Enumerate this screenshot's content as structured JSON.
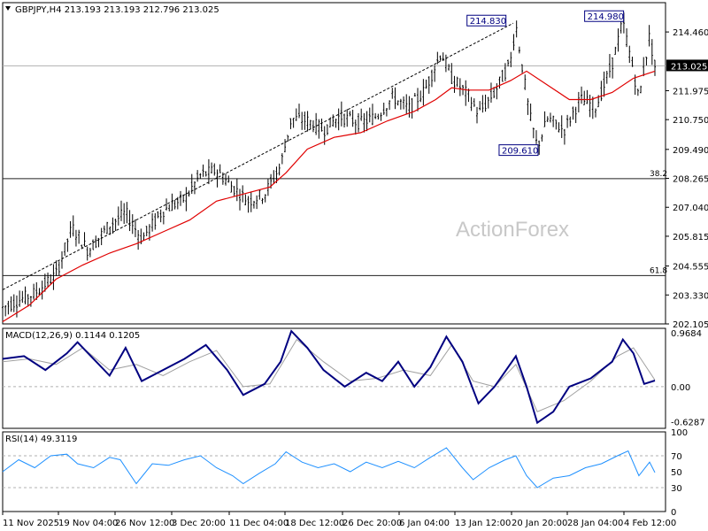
{
  "header": {
    "instrument": "GBPJPY,H4",
    "ohlc": "213.193 213.193 212.796 213.025"
  },
  "watermark": "ActionForex",
  "colors": {
    "candle": "#000000",
    "ma": "#e00000",
    "macd": "#000080",
    "signal": "#a0a0a0",
    "rsi": "#1e90ff",
    "trendline": "#000000",
    "current_price_bg": "#000000"
  },
  "chart_data": [
    {
      "type": "candlestick",
      "title": "GBPJPY,H4",
      "ylim": [
        202.105,
        215.7
      ],
      "y_ticks": [
        "214.460",
        "211.975",
        "210.750",
        "209.490",
        "208.265",
        "207.040",
        "205.815",
        "204.555",
        "203.330",
        "202.105"
      ],
      "x_ticks": [
        "11 Nov 2025",
        "19 Nov 04:00",
        "26 Nov 12:00",
        "3 Dec 20:00",
        "11 Dec 04:00",
        "18 Dec 12:00",
        "26 Dec 20:00",
        "6 Jan 04:00",
        "13 Jan 12:00",
        "20 Jan 20:00",
        "28 Jan 04:00",
        "4 Feb 12:00"
      ],
      "current_price": "213.025",
      "close_trace": [
        [
          0,
          202.8
        ],
        [
          0.06,
          203.4
        ],
        [
          0.1,
          204.2
        ],
        [
          0.13,
          206.2
        ],
        [
          0.16,
          205.2
        ],
        [
          0.2,
          206.3
        ],
        [
          0.23,
          206.8
        ],
        [
          0.26,
          205.7
        ],
        [
          0.3,
          206.9
        ],
        [
          0.34,
          207.4
        ],
        [
          0.37,
          208.4
        ],
        [
          0.4,
          208.6
        ],
        [
          0.43,
          207.9
        ],
        [
          0.46,
          207.3
        ],
        [
          0.49,
          207.6
        ],
        [
          0.52,
          208.8
        ],
        [
          0.54,
          210.8
        ],
        [
          0.57,
          210.7
        ],
        [
          0.6,
          210.3
        ],
        [
          0.63,
          210.9
        ],
        [
          0.67,
          210.6
        ],
        [
          0.7,
          210.9
        ],
        [
          0.73,
          211.7
        ],
        [
          0.76,
          211.2
        ],
        [
          0.79,
          212.0
        ],
        [
          0.82,
          213.6
        ],
        [
          0.84,
          212.5
        ],
        [
          0.87,
          211.8
        ],
        [
          0.89,
          211.0
        ],
        [
          0.92,
          211.9
        ],
        [
          0.95,
          213.2
        ],
        [
          0.96,
          214.8
        ],
        [
          0.985,
          211.0
        ],
        [
          1.0,
          209.6
        ],
        [
          1.02,
          210.8
        ],
        [
          1.05,
          210.3
        ],
        [
          1.08,
          211.6
        ],
        [
          1.11,
          211.3
        ],
        [
          1.14,
          213.1
        ],
        [
          1.16,
          214.9
        ],
        [
          1.18,
          212.8
        ],
        [
          1.19,
          211.6
        ],
        [
          1.21,
          214.3
        ],
        [
          1.22,
          213.0
        ]
      ],
      "ma_trace": [
        [
          0,
          202.2
        ],
        [
          0.05,
          202.9
        ],
        [
          0.1,
          204.0
        ],
        [
          0.15,
          204.6
        ],
        [
          0.2,
          205.1
        ],
        [
          0.25,
          205.5
        ],
        [
          0.3,
          206.0
        ],
        [
          0.35,
          206.5
        ],
        [
          0.4,
          207.3
        ],
        [
          0.45,
          207.6
        ],
        [
          0.5,
          207.9
        ],
        [
          0.53,
          208.5
        ],
        [
          0.57,
          209.5
        ],
        [
          0.62,
          210.0
        ],
        [
          0.67,
          210.2
        ],
        [
          0.72,
          210.7
        ],
        [
          0.77,
          211.1
        ],
        [
          0.81,
          211.6
        ],
        [
          0.84,
          212.1
        ],
        [
          0.87,
          212.0
        ],
        [
          0.91,
          212.0
        ],
        [
          0.95,
          212.4
        ],
        [
          0.98,
          212.8
        ],
        [
          1.02,
          212.2
        ],
        [
          1.06,
          211.6
        ],
        [
          1.1,
          211.6
        ],
        [
          1.14,
          211.9
        ],
        [
          1.18,
          212.5
        ],
        [
          1.22,
          212.8
        ]
      ],
      "annotations": [
        {
          "text": "214.830",
          "value": 214.83
        },
        {
          "text": "214.980",
          "value": 214.98
        },
        {
          "text": "209.610",
          "value": 209.61
        }
      ],
      "fib_levels": [
        {
          "label": "38.2",
          "value": 208.25
        },
        {
          "label": "61.8",
          "value": 204.15
        }
      ],
      "horizontal_line": 213.025,
      "grid": false
    },
    {
      "type": "line",
      "title": "MACD(12,26,9) 0.1144 0.1205",
      "ylim": [
        -0.75,
        1.05
      ],
      "y_ticks": [
        "0.9684",
        "0.00",
        "-0.6287"
      ],
      "series": [
        {
          "name": "MACD",
          "points": [
            [
              0,
              0.5
            ],
            [
              0.04,
              0.55
            ],
            [
              0.08,
              0.3
            ],
            [
              0.12,
              0.6
            ],
            [
              0.14,
              0.8
            ],
            [
              0.16,
              0.6
            ],
            [
              0.2,
              0.2
            ],
            [
              0.23,
              0.7
            ],
            [
              0.26,
              0.1
            ],
            [
              0.3,
              0.3
            ],
            [
              0.34,
              0.5
            ],
            [
              0.38,
              0.75
            ],
            [
              0.42,
              0.3
            ],
            [
              0.45,
              -0.15
            ],
            [
              0.49,
              0.05
            ],
            [
              0.52,
              0.45
            ],
            [
              0.54,
              1.0
            ],
            [
              0.57,
              0.7
            ],
            [
              0.6,
              0.3
            ],
            [
              0.64,
              0.0
            ],
            [
              0.68,
              0.25
            ],
            [
              0.71,
              0.1
            ],
            [
              0.74,
              0.45
            ],
            [
              0.77,
              0.0
            ],
            [
              0.8,
              0.35
            ],
            [
              0.83,
              0.9
            ],
            [
              0.86,
              0.45
            ],
            [
              0.89,
              -0.3
            ],
            [
              0.92,
              0.0
            ],
            [
              0.96,
              0.55
            ],
            [
              0.98,
              0.0
            ],
            [
              1.0,
              -0.65
            ],
            [
              1.03,
              -0.45
            ],
            [
              1.06,
              0.0
            ],
            [
              1.1,
              0.15
            ],
            [
              1.14,
              0.45
            ],
            [
              1.16,
              0.85
            ],
            [
              1.18,
              0.6
            ],
            [
              1.2,
              0.05
            ],
            [
              1.22,
              0.11
            ]
          ]
        },
        {
          "name": "Signal",
          "points": [
            [
              0,
              0.45
            ],
            [
              0.05,
              0.5
            ],
            [
              0.1,
              0.4
            ],
            [
              0.15,
              0.7
            ],
            [
              0.2,
              0.3
            ],
            [
              0.25,
              0.4
            ],
            [
              0.3,
              0.2
            ],
            [
              0.35,
              0.45
            ],
            [
              0.4,
              0.65
            ],
            [
              0.45,
              0.0
            ],
            [
              0.5,
              0.05
            ],
            [
              0.55,
              0.85
            ],
            [
              0.6,
              0.45
            ],
            [
              0.65,
              0.1
            ],
            [
              0.7,
              0.15
            ],
            [
              0.75,
              0.3
            ],
            [
              0.8,
              0.2
            ],
            [
              0.84,
              0.75
            ],
            [
              0.88,
              0.1
            ],
            [
              0.92,
              0.0
            ],
            [
              0.96,
              0.4
            ],
            [
              1.0,
              -0.45
            ],
            [
              1.05,
              -0.25
            ],
            [
              1.1,
              0.1
            ],
            [
              1.15,
              0.55
            ],
            [
              1.18,
              0.7
            ],
            [
              1.22,
              0.12
            ]
          ]
        }
      ]
    },
    {
      "type": "line",
      "title": "RSI(14) 49.3119",
      "ylim": [
        0,
        100
      ],
      "y_ticks": [
        "100",
        "70",
        "50",
        "30",
        "0"
      ],
      "levels": [
        70,
        30
      ],
      "series": [
        {
          "name": "RSI",
          "points": [
            [
              0,
              50
            ],
            [
              0.03,
              65
            ],
            [
              0.06,
              55
            ],
            [
              0.09,
              70
            ],
            [
              0.12,
              72
            ],
            [
              0.14,
              60
            ],
            [
              0.17,
              55
            ],
            [
              0.2,
              68
            ],
            [
              0.22,
              65
            ],
            [
              0.25,
              35
            ],
            [
              0.28,
              60
            ],
            [
              0.31,
              58
            ],
            [
              0.34,
              65
            ],
            [
              0.37,
              70
            ],
            [
              0.4,
              55
            ],
            [
              0.43,
              45
            ],
            [
              0.45,
              35
            ],
            [
              0.48,
              48
            ],
            [
              0.51,
              60
            ],
            [
              0.53,
              75
            ],
            [
              0.56,
              62
            ],
            [
              0.59,
              55
            ],
            [
              0.62,
              60
            ],
            [
              0.65,
              50
            ],
            [
              0.68,
              62
            ],
            [
              0.71,
              55
            ],
            [
              0.74,
              63
            ],
            [
              0.77,
              55
            ],
            [
              0.8,
              68
            ],
            [
              0.83,
              80
            ],
            [
              0.86,
              55
            ],
            [
              0.88,
              40
            ],
            [
              0.91,
              55
            ],
            [
              0.94,
              65
            ],
            [
              0.96,
              70
            ],
            [
              0.98,
              45
            ],
            [
              1.0,
              30
            ],
            [
              1.03,
              42
            ],
            [
              1.06,
              45
            ],
            [
              1.09,
              55
            ],
            [
              1.12,
              60
            ],
            [
              1.15,
              70
            ],
            [
              1.17,
              76
            ],
            [
              1.19,
              45
            ],
            [
              1.21,
              62
            ],
            [
              1.22,
              49
            ]
          ]
        }
      ]
    }
  ]
}
